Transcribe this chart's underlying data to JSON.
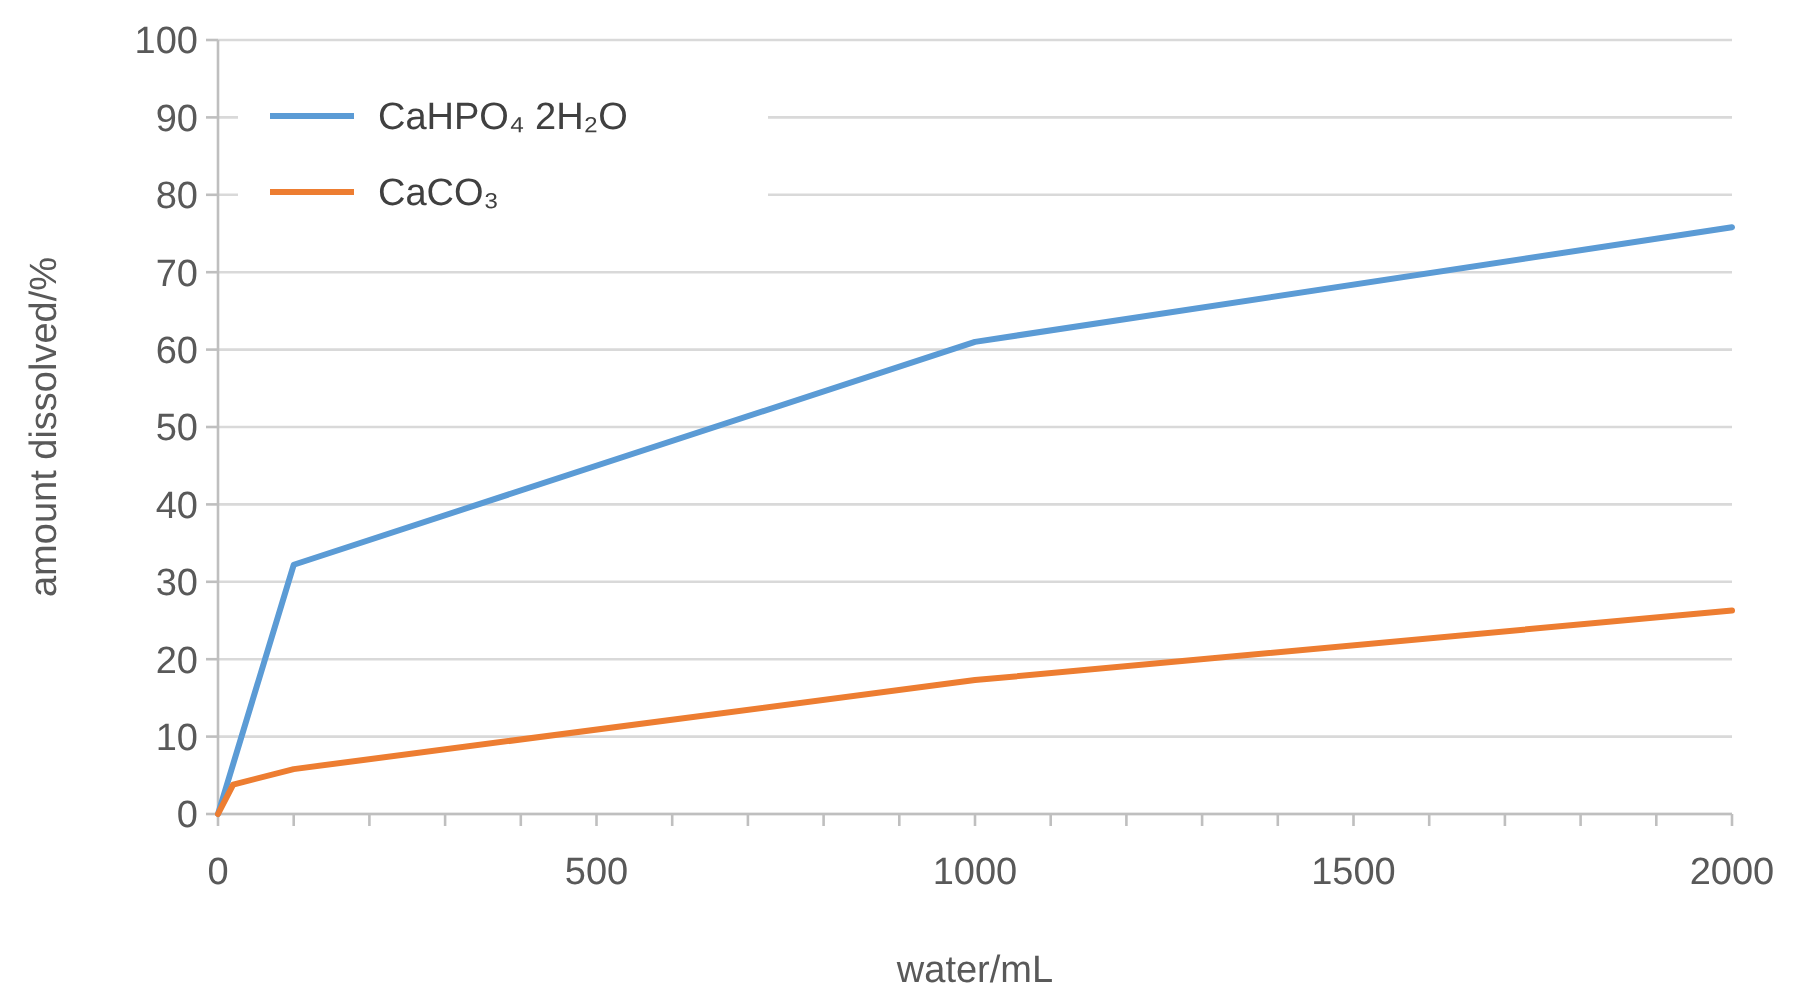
{
  "chart_data": {
    "type": "line",
    "xlabel": "water/mL",
    "ylabel": "amount dissolved/%",
    "xlim": [
      0,
      2000
    ],
    "ylim": [
      0,
      100
    ],
    "xticks": [
      0,
      {
        "value": 100,
        "label": null
      },
      {
        "value": 200,
        "label": null
      },
      {
        "value": 300,
        "label": null
      },
      {
        "value": 400,
        "label": null
      },
      500,
      {
        "value": 600,
        "label": null
      },
      {
        "value": 700,
        "label": null
      },
      {
        "value": 800,
        "label": null
      },
      {
        "value": 900,
        "label": null
      },
      1000,
      {
        "value": 1100,
        "label": null
      },
      {
        "value": 1200,
        "label": null
      },
      {
        "value": 1300,
        "label": null
      },
      {
        "value": 1400,
        "label": null
      },
      1500,
      {
        "value": 1600,
        "label": null
      },
      {
        "value": 1700,
        "label": null
      },
      {
        "value": 1800,
        "label": null
      },
      {
        "value": 1900,
        "label": null
      },
      2000
    ],
    "yticks": [
      0,
      10,
      20,
      30,
      40,
      50,
      60,
      70,
      80,
      90,
      100
    ],
    "grid": "y",
    "legend": "top left",
    "marker": "none",
    "line_style": "solid",
    "series": [
      {
        "name": "CaHPO₄ 2H₂O",
        "color": "#5b9bd5",
        "x": [
          0,
          100,
          1000,
          2000
        ],
        "values": [
          0,
          32.2,
          61,
          75.8
        ]
      },
      {
        "name": "CaCO₃",
        "color": "#ed7d31",
        "x": [
          0,
          20,
          100,
          1000,
          2000
        ],
        "values": [
          0,
          3.8,
          5.8,
          17.3,
          26.3
        ]
      }
    ]
  }
}
